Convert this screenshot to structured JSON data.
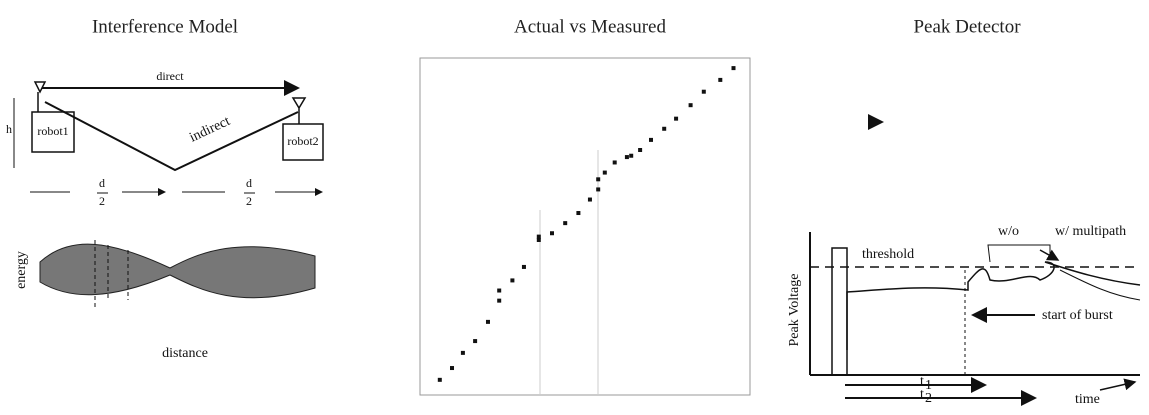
{
  "interference_model": {
    "title": "Interference Model",
    "direct": "direct",
    "indirect": "indirect",
    "robot1": "robot1",
    "robot2": "robot2",
    "height": "h",
    "left_half": {
      "numerator": "d",
      "denominator": "2"
    },
    "right_half": {
      "numerator": "d",
      "denominator": "2"
    },
    "energy": "energy",
    "distance": "distance"
  },
  "actual_vs_measured": {
    "title": "Actual vs Measured",
    "xlim": [
      0,
      100
    ],
    "ylim": [
      0,
      100
    ],
    "points": {
      "x": [
        6,
        9.7,
        13,
        16.7,
        20.6,
        24,
        24,
        28,
        31.5,
        36,
        36,
        40,
        44,
        48,
        51.5,
        54,
        54,
        56,
        59,
        62.7,
        64,
        66.7,
        70,
        74,
        77.6,
        82,
        86,
        91,
        95
      ],
      "y": [
        4.5,
        8,
        12.5,
        16,
        21.7,
        28,
        31,
        34,
        38,
        46,
        47,
        48,
        51,
        54,
        58,
        61,
        64,
        66,
        69,
        70.6,
        71,
        72.7,
        75.7,
        79,
        82,
        86,
        90,
        93.5,
        97
      ]
    }
  },
  "peak_detector": {
    "title": "Peak Detector",
    "y_label": "Peak Voltage",
    "threshold": "threshold",
    "without": "w/o",
    "with": "w/ multipath",
    "start": "start of burst",
    "t1": {
      "base": "t",
      "sub": "1"
    },
    "t2": {
      "base": "t",
      "sub": "2"
    },
    "time": "time"
  }
}
